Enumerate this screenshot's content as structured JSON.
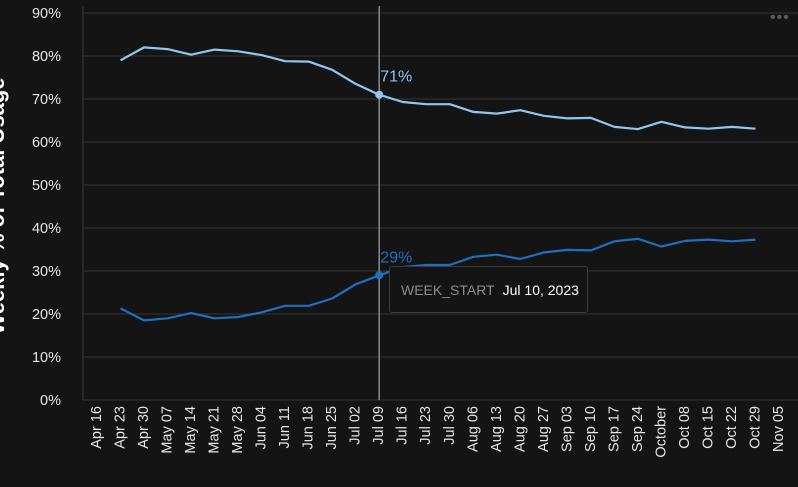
{
  "chart_data": {
    "type": "line",
    "ylabel": "Weekly % of Total Usage",
    "ylim": [
      0,
      90
    ],
    "yticks": [
      "0%",
      "10%",
      "20%",
      "30%",
      "40%",
      "50%",
      "60%",
      "70%",
      "80%",
      "90%"
    ],
    "categories": [
      "Apr 16",
      "Apr 23",
      "Apr 30",
      "May 07",
      "May 14",
      "May 21",
      "May 28",
      "Jun 04",
      "Jun 11",
      "Jun 18",
      "Jun 25",
      "Jul 02",
      "Jul 09",
      "Jul 16",
      "Jul 23",
      "Jul 30",
      "Aug 06",
      "Aug 13",
      "Aug 20",
      "Aug 27",
      "Sep 03",
      "Sep 10",
      "Sep 17",
      "Sep 24",
      "October",
      "Oct 08",
      "Oct 15",
      "Oct 22",
      "Oct 29",
      "Nov 05"
    ],
    "grid": true,
    "series": [
      {
        "color": "#8ec8f2",
        "values": [
          null,
          79,
          82,
          81.6,
          80.3,
          81.5,
          81.1,
          80.2,
          78.8,
          78.7,
          76.8,
          73.5,
          71,
          69.3,
          68.8,
          68.8,
          67,
          66.6,
          67.4,
          66.1,
          65.5,
          65.6,
          63.5,
          63,
          64.7,
          63.4,
          63.1,
          63.5,
          63.1,
          null
        ]
      },
      {
        "color": "#1f6fc0",
        "values": [
          null,
          21.3,
          18.5,
          19,
          20.2,
          19,
          19.3,
          20.4,
          21.9,
          21.9,
          23.6,
          26.9,
          29,
          30.9,
          31.4,
          31.4,
          33.3,
          33.8,
          32.8,
          34.3,
          34.9,
          34.8,
          36.9,
          37.5,
          35.7,
          37,
          37.3,
          36.9,
          37.3,
          null
        ]
      }
    ],
    "hover": {
      "index": 12,
      "labels": [
        "71%",
        "29%"
      ],
      "tooltip_key": "WEEK_START",
      "tooltip_value": "Jul 10, 2023"
    }
  },
  "menu_icon": "more-horizontal-icon"
}
